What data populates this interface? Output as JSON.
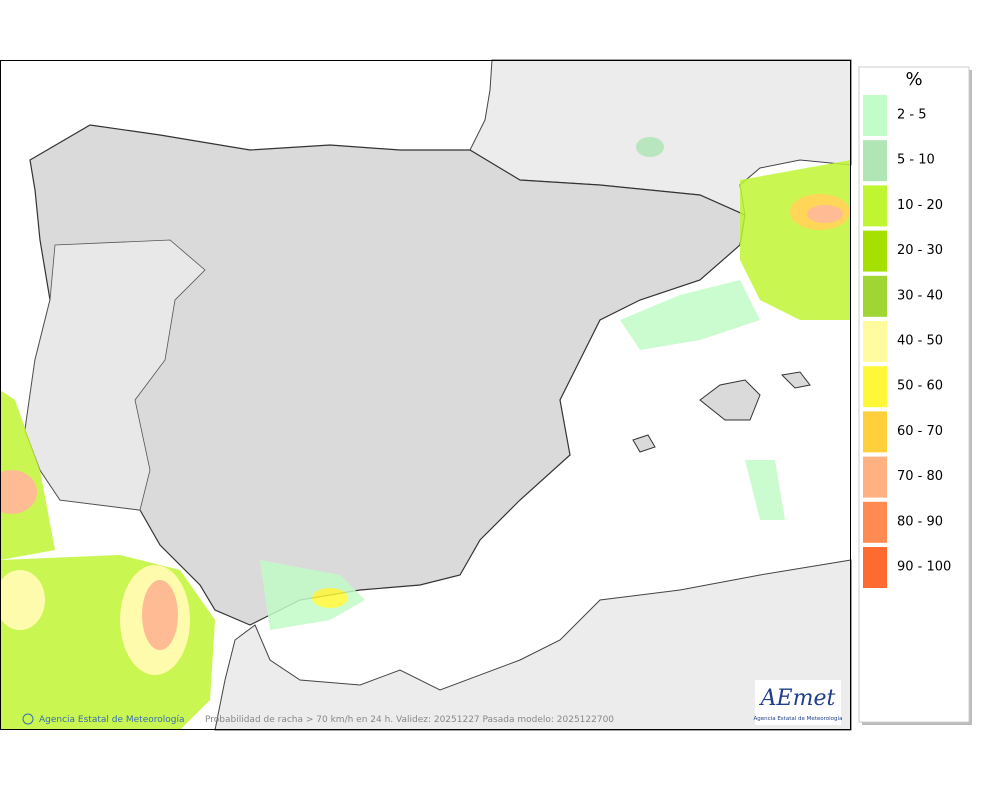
{
  "legend": {
    "title": "%",
    "items": [
      {
        "label": "2 - 5",
        "color": "#c2fcc8"
      },
      {
        "label": "5 - 10",
        "color": "#b0e6b6"
      },
      {
        "label": "10 - 20",
        "color": "#c0f532"
      },
      {
        "label": "20 - 30",
        "color": "#a6e000"
      },
      {
        "label": "30 - 40",
        "color": "#9fd634"
      },
      {
        "label": "40 - 50",
        "color": "#fffb9e"
      },
      {
        "label": "50 - 60",
        "color": "#fff838"
      },
      {
        "label": "60 - 70",
        "color": "#ffd03c"
      },
      {
        "label": "70 - 80",
        "color": "#ffb182"
      },
      {
        "label": "80 - 90",
        "color": "#ff8a52"
      },
      {
        "label": "90 - 100",
        "color": "#ff6a30"
      }
    ]
  },
  "credit": "Agencia Estatal de Meteorología",
  "caption": "Probabilidad de racha > 70 km/h en 24 h. Validez: 20251227 Pasada modelo: 2025122700",
  "logo": {
    "name": "AEmet",
    "subtitle": "Agencia Estatal de Meteorología"
  }
}
